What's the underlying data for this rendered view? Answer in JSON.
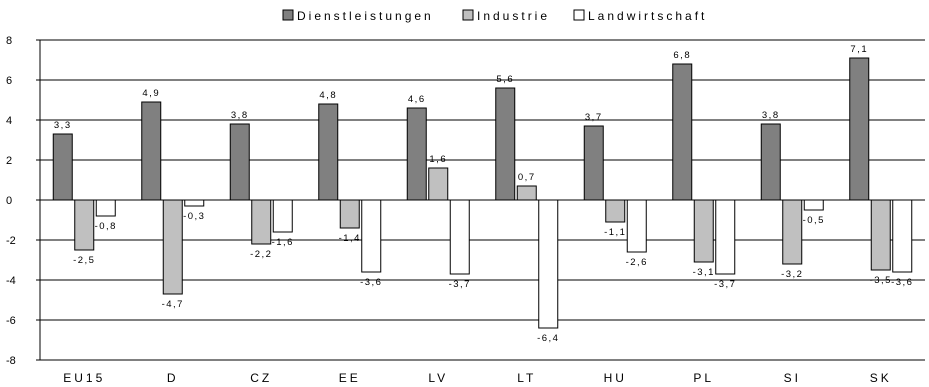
{
  "chart_data": {
    "type": "bar",
    "categories": [
      "EU15",
      "D",
      "CZ",
      "EE",
      "LV",
      "LT",
      "HU",
      "PL",
      "SI",
      "SK"
    ],
    "series": [
      {
        "name": "Dienstleistungen",
        "color": "#808080",
        "values": [
          3.3,
          4.9,
          3.8,
          4.8,
          4.6,
          5.6,
          3.7,
          6.8,
          3.8,
          7.1
        ],
        "labels": [
          "3,3",
          "4,9",
          "3,8",
          "4,8",
          "4,6",
          "5,6",
          "3,7",
          "6,8",
          "3,8",
          "7,1"
        ]
      },
      {
        "name": "Industrie",
        "color": "#c0c0c0",
        "values": [
          -2.5,
          -4.7,
          -2.2,
          -1.4,
          1.6,
          0.7,
          -1.1,
          -3.1,
          -3.2,
          -3.5
        ],
        "labels": [
          "-2,5",
          "-4,7",
          "-2,2",
          "-1,4",
          "1,6",
          "0,7",
          "-1,1",
          "-3,1",
          "-3,2",
          "-3,5"
        ]
      },
      {
        "name": "Landwirtschaft",
        "color": "#ffffff",
        "values": [
          -0.8,
          -0.3,
          -1.6,
          -3.6,
          -3.7,
          -6.4,
          -2.6,
          -3.7,
          -0.5,
          -3.6
        ],
        "labels": [
          "-0,8",
          "-0,3",
          "-1,6",
          "-3,6",
          "-3,7",
          "-6,4",
          "-2,6",
          "-3,7",
          "-0,5",
          "-3,6"
        ]
      }
    ],
    "yticks": [
      "8",
      "6",
      "4",
      "2",
      "0",
      "-2",
      "-4",
      "-6",
      "-8"
    ],
    "ylim": [
      -8,
      8
    ],
    "grid": true,
    "legend_position": "top-center",
    "title": "",
    "xlabel": "",
    "ylabel": ""
  }
}
